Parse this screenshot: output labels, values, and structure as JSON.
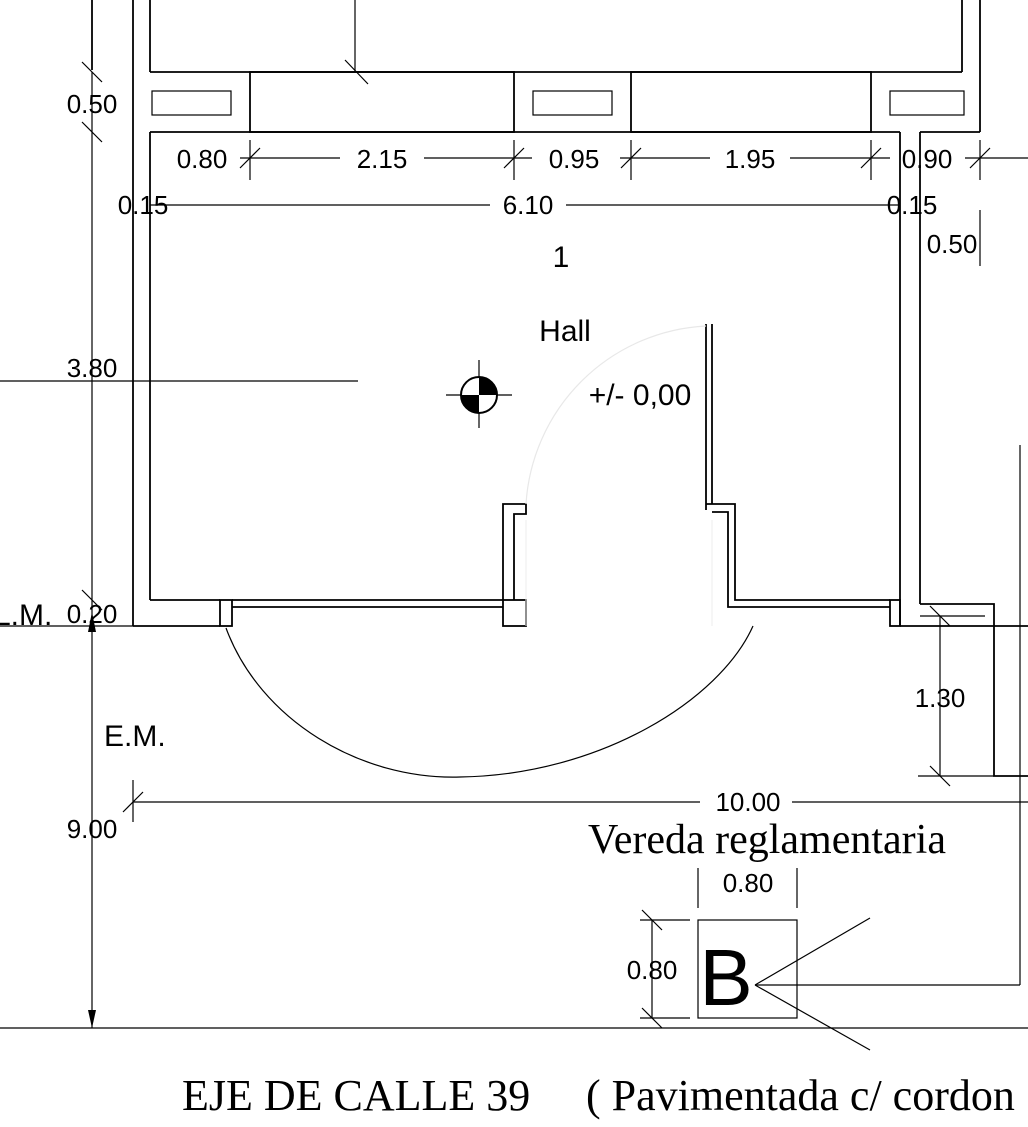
{
  "room": {
    "number": "1",
    "name": "Hall",
    "level": "+/- 0,00"
  },
  "dimensions": {
    "top_wall": "0.50",
    "w1": "0.80",
    "w2": "2.15",
    "w3": "0.95",
    "w4": "1.95",
    "w5": "0.90",
    "wall_left": "0.15",
    "interior_width": "6.10",
    "wall_right": "0.15",
    "right_wall": "0.50",
    "height": "3.80",
    "lm_offset": "0.20",
    "side_depth": "1.30",
    "lot_width": "10.00",
    "street_depth": "9.00",
    "box_w": "0.80",
    "box_h": "0.80"
  },
  "labels": {
    "lm": "L.M.",
    "em": "E.M.",
    "sidewalk": "Vereda reglamentaria",
    "box_letter": "B",
    "street_axis": "EJE DE CALLE 39",
    "street_note": "( Pavimentada c/ cordon"
  }
}
